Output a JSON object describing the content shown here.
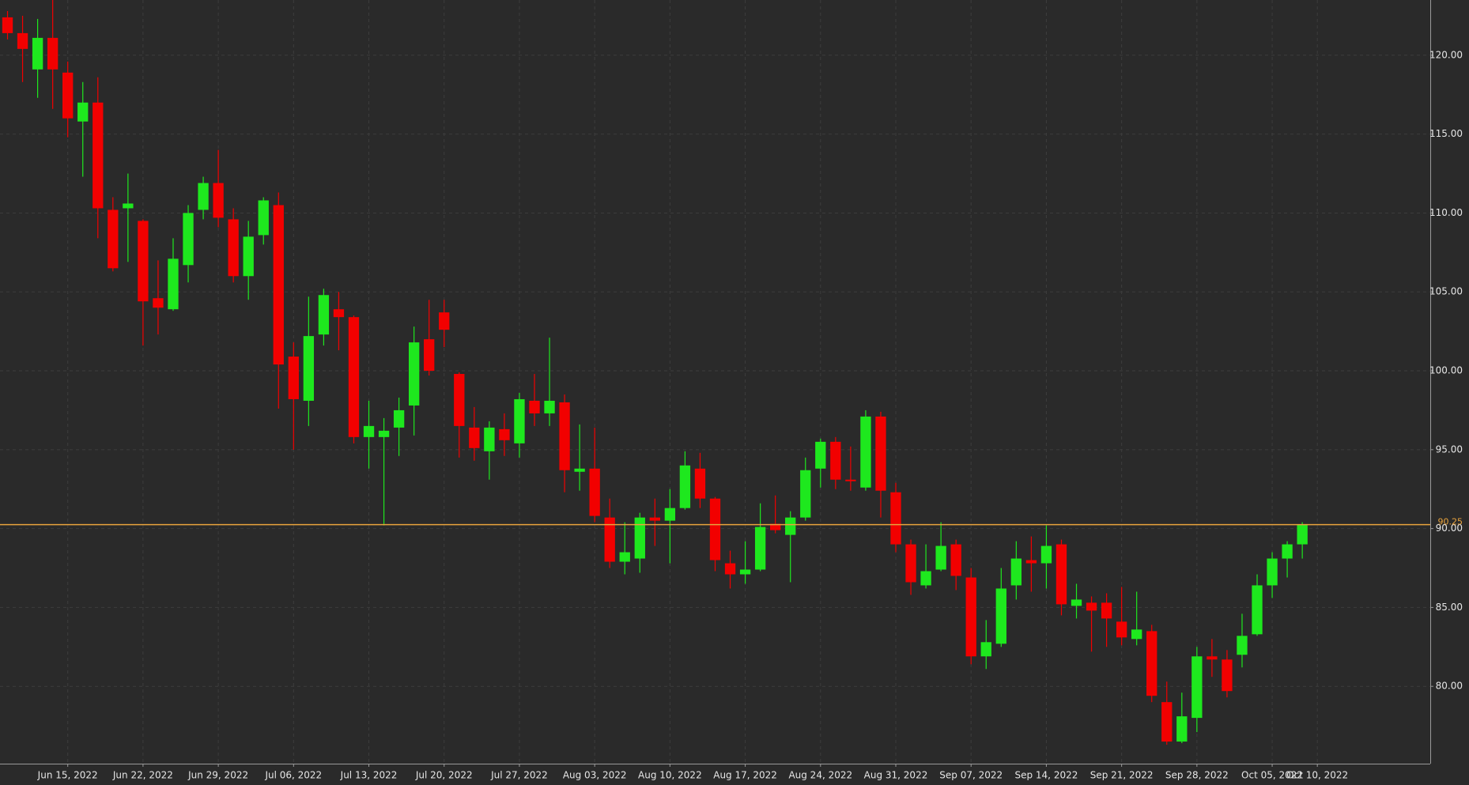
{
  "chart_data": {
    "type": "candlestick",
    "x": [
      "2022-06-09",
      "2022-06-10",
      "2022-06-13",
      "2022-06-14",
      "2022-06-15",
      "2022-06-16",
      "2022-06-17",
      "2022-06-20",
      "2022-06-21",
      "2022-06-22",
      "2022-06-23",
      "2022-06-24",
      "2022-06-27",
      "2022-06-28",
      "2022-06-29",
      "2022-06-30",
      "2022-07-01",
      "2022-07-04",
      "2022-07-05",
      "2022-07-06",
      "2022-07-07",
      "2022-07-08",
      "2022-07-11",
      "2022-07-12",
      "2022-07-13",
      "2022-07-14",
      "2022-07-15",
      "2022-07-18",
      "2022-07-19",
      "2022-07-20",
      "2022-07-21",
      "2022-07-22",
      "2022-07-25",
      "2022-07-26",
      "2022-07-27",
      "2022-07-28",
      "2022-07-29",
      "2022-08-01",
      "2022-08-02",
      "2022-08-03",
      "2022-08-04",
      "2022-08-05",
      "2022-08-08",
      "2022-08-09",
      "2022-08-10",
      "2022-08-11",
      "2022-08-12",
      "2022-08-15",
      "2022-08-16",
      "2022-08-17",
      "2022-08-18",
      "2022-08-19",
      "2022-08-22",
      "2022-08-23",
      "2022-08-24",
      "2022-08-25",
      "2022-08-26",
      "2022-08-29",
      "2022-08-30",
      "2022-08-31",
      "2022-09-01",
      "2022-09-02",
      "2022-09-05",
      "2022-09-06",
      "2022-09-07",
      "2022-09-08",
      "2022-09-09",
      "2022-09-12",
      "2022-09-13",
      "2022-09-14",
      "2022-09-15",
      "2022-09-16",
      "2022-09-19",
      "2022-09-20",
      "2022-09-21",
      "2022-09-22",
      "2022-09-23",
      "2022-09-26",
      "2022-09-27",
      "2022-09-28",
      "2022-09-29",
      "2022-09-30",
      "2022-10-03",
      "2022-10-04",
      "2022-10-05",
      "2022-10-06",
      "2022-10-07"
    ],
    "open": [
      122.4,
      121.4,
      119.1,
      121.1,
      118.9,
      115.8,
      117,
      110.2,
      110.3,
      109.5,
      104.6,
      103.9,
      106.7,
      110.2,
      111.9,
      109.6,
      106,
      108.6,
      110.5,
      100.9,
      98.1,
      102.3,
      103.9,
      103.4,
      95.8,
      95.8,
      96.4,
      97.8,
      102,
      103.7,
      99.8,
      96.4,
      94.9,
      96.3,
      95.4,
      98.1,
      97.3,
      98,
      93.6,
      93.8,
      90.7,
      87.9,
      88.1,
      90.7,
      90.5,
      91.3,
      93.8,
      91.9,
      87.8,
      87.1,
      87.4,
      90.3,
      89.6,
      90.7,
      93.8,
      95.5,
      93.1,
      92.6,
      97.1,
      92.3,
      89,
      86.4,
      87.4,
      89,
      86.9,
      81.9,
      82.7,
      86.4,
      88,
      87.8,
      89,
      85.1,
      85.3,
      85.3,
      84.1,
      83,
      83.5,
      79,
      76.5,
      78,
      81.9,
      81.7,
      82,
      83.3,
      86.4,
      88.1,
      89
    ],
    "high": [
      122.8,
      122.5,
      122.3,
      123.5,
      119.6,
      118.3,
      118.6,
      111,
      112.5,
      109.6,
      107,
      108.4,
      110.5,
      112.3,
      114,
      110.3,
      109.5,
      111,
      111.3,
      101.8,
      104.7,
      105.2,
      105,
      103.5,
      98.1,
      97,
      98.3,
      102.8,
      104.5,
      104.5,
      99.9,
      97.7,
      96.8,
      97.3,
      98.6,
      99.8,
      102.1,
      98.5,
      96.6,
      96.4,
      91.9,
      90.4,
      91,
      91.9,
      92.5,
      94.9,
      94.8,
      92,
      88.6,
      89.2,
      91.6,
      92.1,
      91.1,
      94.5,
      95.7,
      95.8,
      95.2,
      97.5,
      97.4,
      92.9,
      89.3,
      89,
      90.4,
      89.3,
      87.5,
      84.2,
      87.5,
      89.2,
      89.5,
      90.2,
      89.3,
      86.5,
      85.7,
      85.9,
      86.3,
      86,
      83.9,
      80.3,
      79.6,
      82.5,
      83,
      82.3,
      84.6,
      87.1,
      88.5,
      89.2,
      90.4
    ],
    "low": [
      121,
      118.3,
      117.3,
      116.6,
      114.8,
      112.3,
      108.4,
      106.3,
      106.9,
      101.6,
      102.3,
      103.8,
      105.6,
      109.6,
      109.1,
      105.6,
      104.5,
      108,
      97.6,
      95,
      96.5,
      101.6,
      101.3,
      95.4,
      93.8,
      90.2,
      94.6,
      95.9,
      99.7,
      101.5,
      94.5,
      94.3,
      93.1,
      94.6,
      94.5,
      96.5,
      96.5,
      92.3,
      92.4,
      90.4,
      87.5,
      87.1,
      87.2,
      88.9,
      87.8,
      91.2,
      91.3,
      87.3,
      86.2,
      86.5,
      87.3,
      89.7,
      86.6,
      90.5,
      92.6,
      92.5,
      92.4,
      92.4,
      90.7,
      88.5,
      85.8,
      86.2,
      87.3,
      86.1,
      81.4,
      81.1,
      82.5,
      85.5,
      86,
      86.2,
      84.5,
      84.3,
      82.2,
      82.5,
      82.6,
      82.6,
      79,
      76.3,
      76.4,
      77.1,
      80.6,
      79.3,
      81.2,
      83.2,
      85.6,
      86.9,
      88.1
    ],
    "close": [
      121.4,
      120.4,
      121.1,
      119.1,
      116,
      117,
      110.3,
      106.5,
      110.6,
      104.4,
      104,
      107.1,
      110,
      111.9,
      109.7,
      106,
      108.5,
      110.8,
      100.4,
      98.2,
      102.2,
      104.8,
      103.4,
      95.8,
      96.5,
      96.2,
      97.5,
      101.8,
      100,
      102.6,
      96.5,
      95.1,
      96.4,
      95.6,
      98.2,
      97.3,
      98.1,
      93.7,
      93.8,
      90.8,
      87.9,
      88.5,
      90.7,
      90.5,
      91.3,
      94,
      91.9,
      88,
      87.1,
      87.4,
      90.1,
      89.9,
      90.7,
      93.7,
      95.5,
      93.1,
      93,
      97.1,
      92.4,
      89,
      86.6,
      87.3,
      88.9,
      87,
      81.9,
      82.8,
      86.2,
      88.1,
      87.8,
      88.9,
      85.2,
      85.5,
      84.8,
      84.3,
      83.1,
      83.6,
      79.4,
      76.5,
      78.1,
      81.9,
      81.7,
      79.7,
      83.2,
      86.4,
      88.1,
      89,
      90.25
    ],
    "up_color": "#1ee81e",
    "down_color": "#f20000",
    "price_line": 90.25,
    "price_line_color": "#e8a33d",
    "xlim": [
      "2022-06-09",
      "2022-10-20"
    ],
    "xticks": [
      {
        "value": "2022-06-15",
        "label": "Jun 15, 2022"
      },
      {
        "value": "2022-06-22",
        "label": "Jun 22, 2022"
      },
      {
        "value": "2022-06-29",
        "label": "Jun 29, 2022"
      },
      {
        "value": "2022-07-06",
        "label": "Jul 06, 2022"
      },
      {
        "value": "2022-07-13",
        "label": "Jul 13, 2022"
      },
      {
        "value": "2022-07-20",
        "label": "Jul 20, 2022"
      },
      {
        "value": "2022-07-27",
        "label": "Jul 27, 2022"
      },
      {
        "value": "2022-08-03",
        "label": "Aug 03, 2022"
      },
      {
        "value": "2022-08-10",
        "label": "Aug 10, 2022"
      },
      {
        "value": "2022-08-17",
        "label": "Aug 17, 2022"
      },
      {
        "value": "2022-08-24",
        "label": "Aug 24, 2022"
      },
      {
        "value": "2022-08-31",
        "label": "Aug 31, 2022"
      },
      {
        "value": "2022-09-07",
        "label": "Sep 07, 2022"
      },
      {
        "value": "2022-09-14",
        "label": "Sep 14, 2022"
      },
      {
        "value": "2022-09-21",
        "label": "Sep 21, 2022"
      },
      {
        "value": "2022-09-28",
        "label": "Sep 28, 2022"
      },
      {
        "value": "2022-10-05",
        "label": "Oct 05, 2022"
      },
      {
        "value": "2022-10-10",
        "label": "Oct 10, 2022"
      }
    ],
    "ylim": [
      75.1,
      123.5
    ],
    "yticks": [
      {
        "value": 80,
        "label": "80.00"
      },
      {
        "value": 85,
        "label": "85.00"
      },
      {
        "value": 90,
        "label": "90.00"
      },
      {
        "value": 95,
        "label": "95.00"
      },
      {
        "value": 100,
        "label": "100.00"
      },
      {
        "value": 105,
        "label": "105.00"
      },
      {
        "value": 110,
        "label": "110.00"
      },
      {
        "value": 115,
        "label": "115.00"
      },
      {
        "value": 120,
        "label": "120.00"
      }
    ],
    "grid": true
  }
}
